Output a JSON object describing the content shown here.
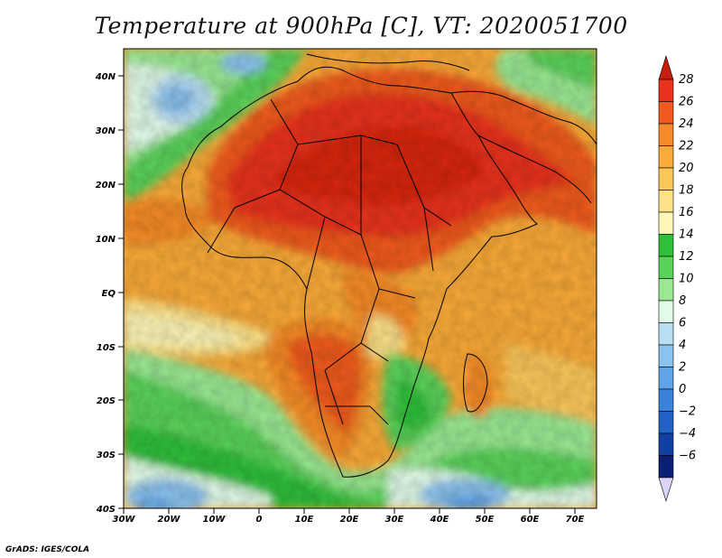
{
  "title": "Temperature at 900hPa [C], VT: 2020051700",
  "footer": "GrADS: IGES/COLA",
  "map": {
    "lat_ticks": [
      "40N",
      "30N",
      "20N",
      "10N",
      "EQ",
      "10S",
      "20S",
      "30S",
      "40S"
    ],
    "lon_ticks": [
      "30W",
      "20W",
      "10W",
      "0",
      "10E",
      "20E",
      "30E",
      "40E",
      "50E",
      "60E",
      "70E"
    ],
    "region": "Africa",
    "lon_range": [
      -30,
      75
    ],
    "lat_range": [
      -40,
      45
    ]
  },
  "colorbar": {
    "labels": [
      "28",
      "26",
      "24",
      "22",
      "20",
      "18",
      "16",
      "14",
      "12",
      "10",
      "8",
      "6",
      "4",
      "2",
      "0",
      "−2",
      "−4",
      "−6"
    ],
    "colors": [
      "#e8321e",
      "#f05a1e",
      "#f58a28",
      "#f9aa38",
      "#fbc75a",
      "#fde28a",
      "#fdf6b8",
      "#2fbf3a",
      "#5ad25a",
      "#9ae893",
      "#e2fbe8",
      "#b7def3",
      "#8cc2ee",
      "#5ea4e6",
      "#3d82da",
      "#2262c6",
      "#123fa2",
      "#0b1f74"
    ],
    "top_color": "#c81e10",
    "bottom_color": "#dcd4f6"
  }
}
